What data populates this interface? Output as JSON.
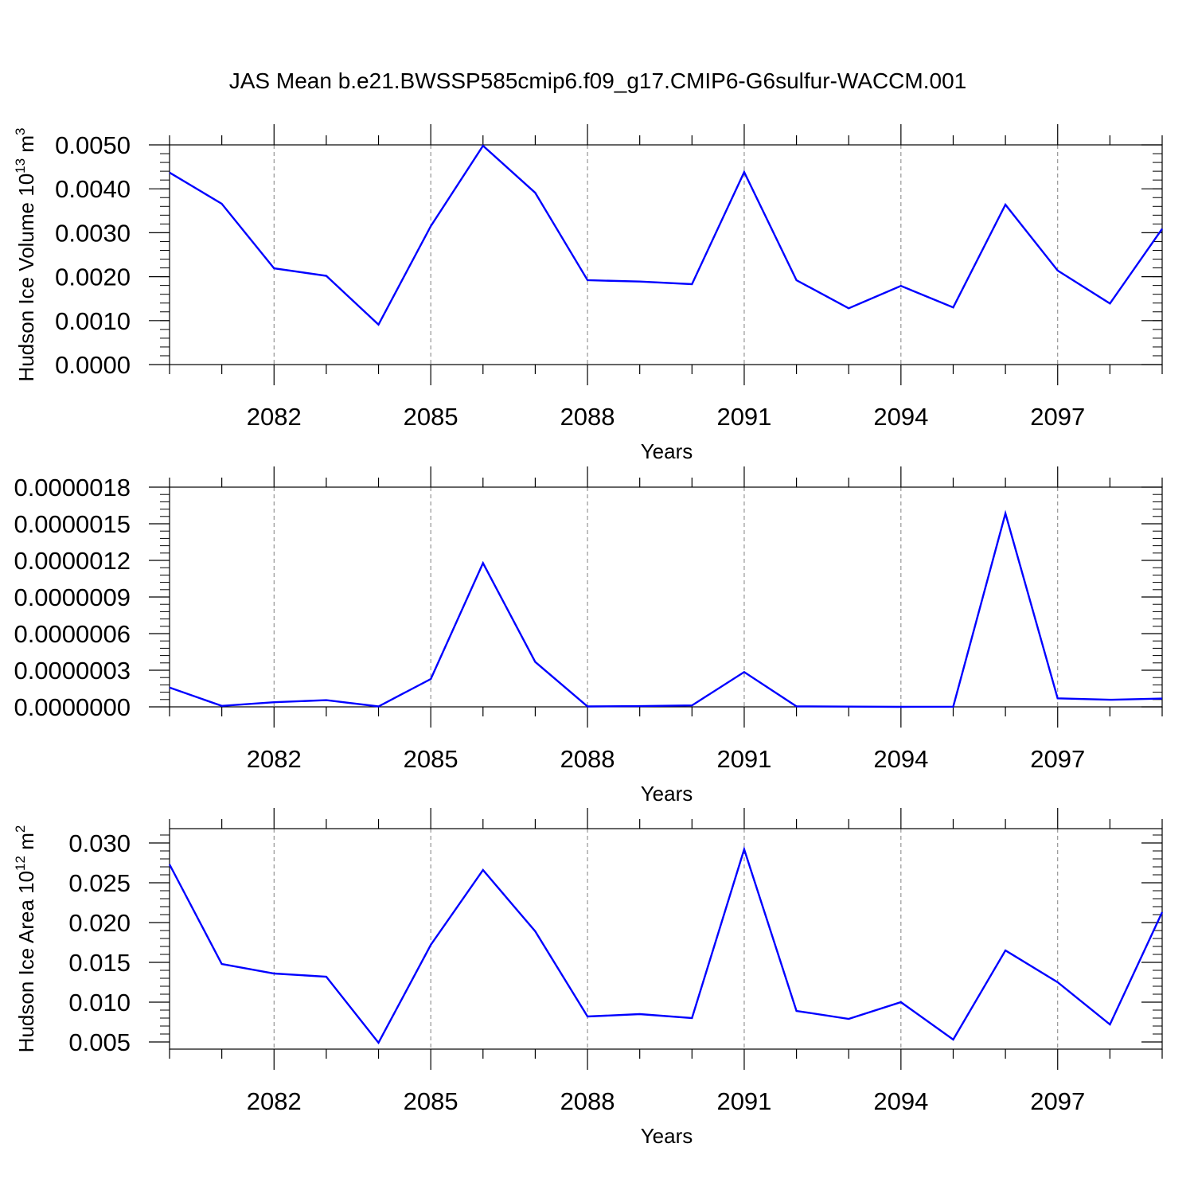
{
  "figure": {
    "title": "JAS Mean b.e21.BWSSP585cmip6.f09_g17.CMIP6-G6sulfur-WACCM.001"
  },
  "colors": {
    "series": "#0000ff",
    "axes": "#000000",
    "grid": "#808080"
  },
  "chart_data": [
    {
      "type": "line",
      "title": "",
      "ylabel": "Hudson Ice Volume 10",
      "ylabel_sup": "13",
      "ylabel_unit": " m",
      "ylabel_unit_sup": "3",
      "xlabel": "Years",
      "xlim": [
        2080,
        2099
      ],
      "ylim": [
        0,
        0.005
      ],
      "yticks": [
        0.0,
        0.001,
        0.002,
        0.003,
        0.004,
        0.005
      ],
      "ytick_labels": [
        "0.0000",
        "0.0010",
        "0.0020",
        "0.0030",
        "0.0040",
        "0.0050"
      ],
      "xticks": [
        2082,
        2085,
        2088,
        2091,
        2094,
        2097
      ],
      "xtick_labels": [
        "2082",
        "2085",
        "2088",
        "2091",
        "2094",
        "2097"
      ],
      "grid": "vertical dashed at labeled years",
      "x": [
        2080,
        2081,
        2082,
        2083,
        2084,
        2085,
        2086,
        2087,
        2088,
        2089,
        2090,
        2091,
        2092,
        2093,
        2094,
        2095,
        2096,
        2097,
        2098,
        2099
      ],
      "y": [
        0.00437,
        0.00366,
        0.00219,
        0.00202,
        0.00091,
        0.00315,
        0.00498,
        0.00391,
        0.00192,
        0.00189,
        0.00183,
        0.00438,
        0.00192,
        0.00128,
        0.00179,
        0.0013,
        0.00364,
        0.00214,
        0.00139,
        0.00309
      ]
    },
    {
      "type": "line",
      "title": "",
      "ylabel": "",
      "xlabel": "Years",
      "xlim": [
        2080,
        2099
      ],
      "ylim": [
        0,
        1.8e-06
      ],
      "yticks": [
        0.0,
        3e-07,
        6e-07,
        9e-07,
        1.2e-06,
        1.5e-06,
        1.8e-06
      ],
      "ytick_labels": [
        "0.0000000",
        "0.0000003",
        "0.0000006",
        "0.0000009",
        "0.0000012",
        "0.0000015",
        "0.0000018"
      ],
      "xticks": [
        2082,
        2085,
        2088,
        2091,
        2094,
        2097
      ],
      "xtick_labels": [
        "2082",
        "2085",
        "2088",
        "2091",
        "2094",
        "2097"
      ],
      "grid": "vertical dashed at labeled years",
      "x": [
        2080,
        2081,
        2082,
        2083,
        2084,
        2085,
        2086,
        2087,
        2088,
        2089,
        2090,
        2091,
        2092,
        2093,
        2094,
        2095,
        2096,
        2097,
        2098,
        2099
      ],
      "y": [
        1.58e-07,
        8e-09,
        3.8e-08,
        5.5e-08,
        3e-09,
        2.28e-07,
        1.178e-06,
        3.68e-07,
        3e-09,
        6e-09,
        1.2e-08,
        2.85e-07,
        4e-09,
        2e-09,
        0.0,
        1e-09,
        1.585e-06,
        7e-08,
        5.8e-08,
        6.8e-08
      ]
    },
    {
      "type": "line",
      "title": "",
      "ylabel": "Hudson Ice Area 10",
      "ylabel_sup": "12",
      "ylabel_unit": " m",
      "ylabel_unit_sup": "2",
      "xlabel": "Years",
      "xlim": [
        2080,
        2099
      ],
      "ylim": [
        0.0041,
        0.0318
      ],
      "yticks": [
        0.005,
        0.01,
        0.015,
        0.02,
        0.025,
        0.03
      ],
      "ytick_labels": [
        "0.005",
        "0.010",
        "0.015",
        "0.020",
        "0.025",
        "0.030"
      ],
      "xticks": [
        2082,
        2085,
        2088,
        2091,
        2094,
        2097
      ],
      "xtick_labels": [
        "2082",
        "2085",
        "2088",
        "2091",
        "2094",
        "2097"
      ],
      "grid": "vertical dashed at labeled years",
      "x": [
        2080,
        2081,
        2082,
        2083,
        2084,
        2085,
        2086,
        2087,
        2088,
        2089,
        2090,
        2091,
        2092,
        2093,
        2094,
        2095,
        2096,
        2097,
        2098,
        2099
      ],
      "y": [
        0.0273,
        0.0148,
        0.0136,
        0.0132,
        0.0049,
        0.0172,
        0.0266,
        0.0189,
        0.0082,
        0.0085,
        0.008,
        0.0292,
        0.0089,
        0.0079,
        0.01,
        0.0053,
        0.0165,
        0.0125,
        0.0072,
        0.0213
      ]
    }
  ]
}
